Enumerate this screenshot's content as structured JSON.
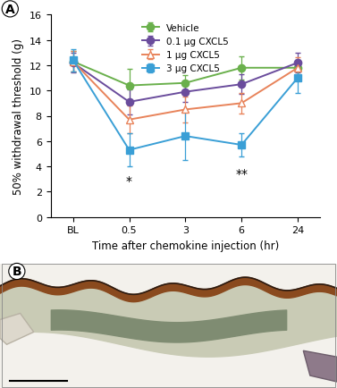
{
  "panel_labels": [
    "A",
    "B"
  ],
  "chart_data": {
    "type": "line",
    "x_label": "Time after chemokine injection (hr)",
    "y_label": "50% withdrawal threshold (g)",
    "categories": [
      "BL",
      "0.5",
      "3",
      "6",
      "24"
    ],
    "ylim": [
      0,
      16
    ],
    "yticks": [
      0,
      2,
      4,
      6,
      8,
      10,
      12,
      14,
      16
    ],
    "grid": false,
    "legend": "upper center",
    "series": [
      {
        "name": "Vehicle",
        "color": "#6ab04c",
        "marker": "circle",
        "values": [
          12.3,
          10.4,
          10.6,
          11.8,
          11.8
        ],
        "errors": [
          0.8,
          1.3,
          0.6,
          0.9,
          0.6
        ]
      },
      {
        "name": "0.1 µg CXCL5",
        "color": "#6a4c9c",
        "marker": "circle",
        "values": [
          12.2,
          9.1,
          9.9,
          10.5,
          12.2
        ],
        "errors": [
          0.8,
          1.0,
          0.8,
          0.8,
          0.8
        ]
      },
      {
        "name": "1 µg CXCL5",
        "color": "#e8835a",
        "marker": "triangle_open",
        "values": [
          12.3,
          7.7,
          8.5,
          9.0,
          11.8
        ],
        "errors": [
          0.8,
          1.1,
          1.0,
          0.8,
          0.8
        ]
      },
      {
        "name": "3 µg CXCL5",
        "color": "#3a9fd6",
        "marker": "square",
        "values": [
          12.4,
          5.3,
          6.4,
          5.7,
          11.0
        ],
        "errors": [
          0.9,
          1.3,
          1.9,
          0.9,
          1.2
        ]
      }
    ],
    "annotations": [
      {
        "text": "*",
        "x": "0.5",
        "y": 3.4
      },
      {
        "text": "**",
        "x": "6",
        "y": 3.9
      }
    ]
  }
}
